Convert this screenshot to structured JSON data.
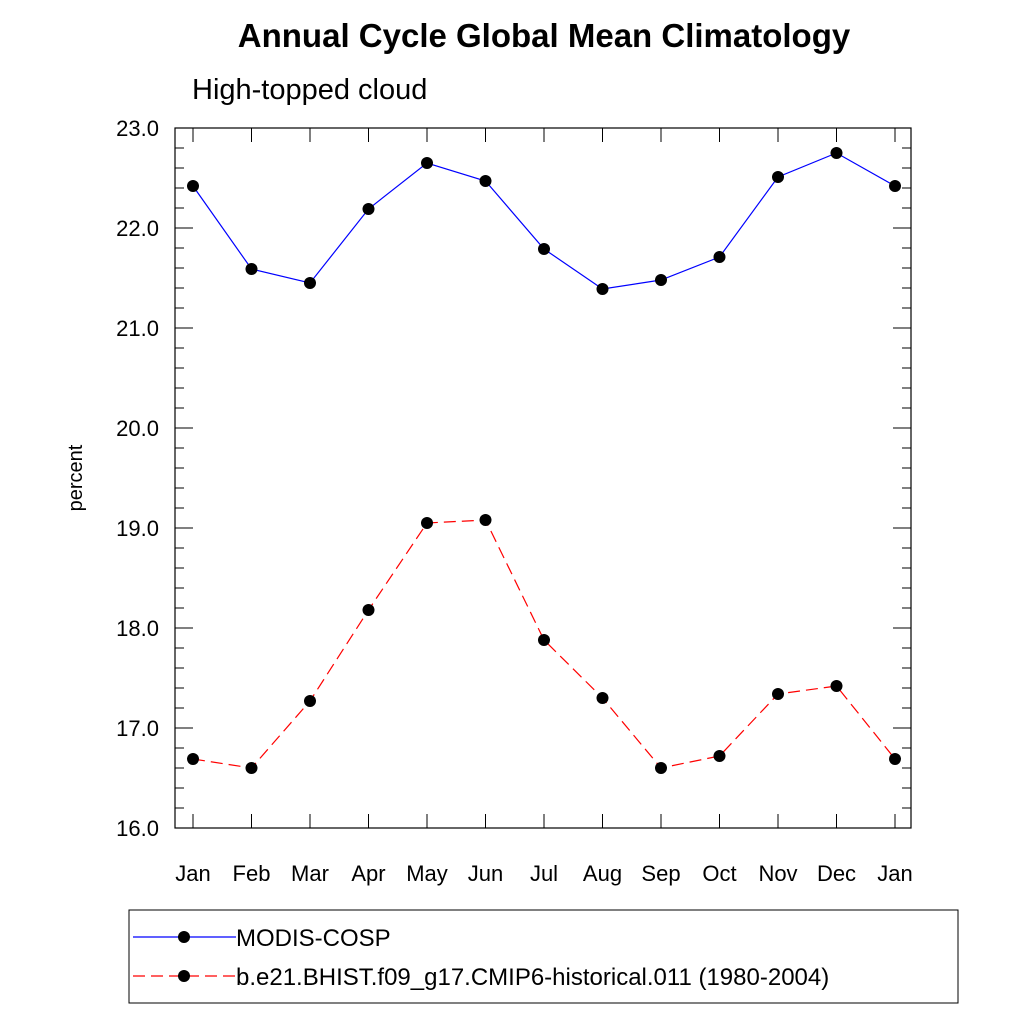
{
  "chart_data": {
    "type": "line",
    "title": "Annual Cycle Global Mean Climatology",
    "subtitle": "High-topped cloud",
    "xlabel": "",
    "ylabel": "percent",
    "categories": [
      "Jan",
      "Feb",
      "Mar",
      "Apr",
      "May",
      "Jun",
      "Jul",
      "Aug",
      "Sep",
      "Oct",
      "Nov",
      "Dec",
      "Jan"
    ],
    "ylim": [
      16.0,
      23.0
    ],
    "yticks": [
      "16.0",
      "17.0",
      "18.0",
      "19.0",
      "20.0",
      "21.0",
      "22.0",
      "23.0"
    ],
    "grid": false,
    "legend_position": "bottom",
    "series": [
      {
        "name": "MODIS-COSP",
        "color": "#0000ff",
        "style": "solid",
        "values": [
          22.42,
          21.59,
          21.45,
          22.19,
          22.65,
          22.47,
          21.79,
          21.39,
          21.48,
          21.71,
          22.51,
          22.75,
          22.42
        ]
      },
      {
        "name": "b.e21.BHIST.f09_g17.CMIP6-historical.011 (1980-2004)",
        "color": "#ff0000",
        "style": "dashed",
        "values": [
          16.69,
          16.6,
          17.27,
          18.18,
          19.05,
          19.08,
          17.88,
          17.3,
          16.6,
          16.72,
          17.34,
          17.42,
          16.69
        ]
      }
    ]
  }
}
